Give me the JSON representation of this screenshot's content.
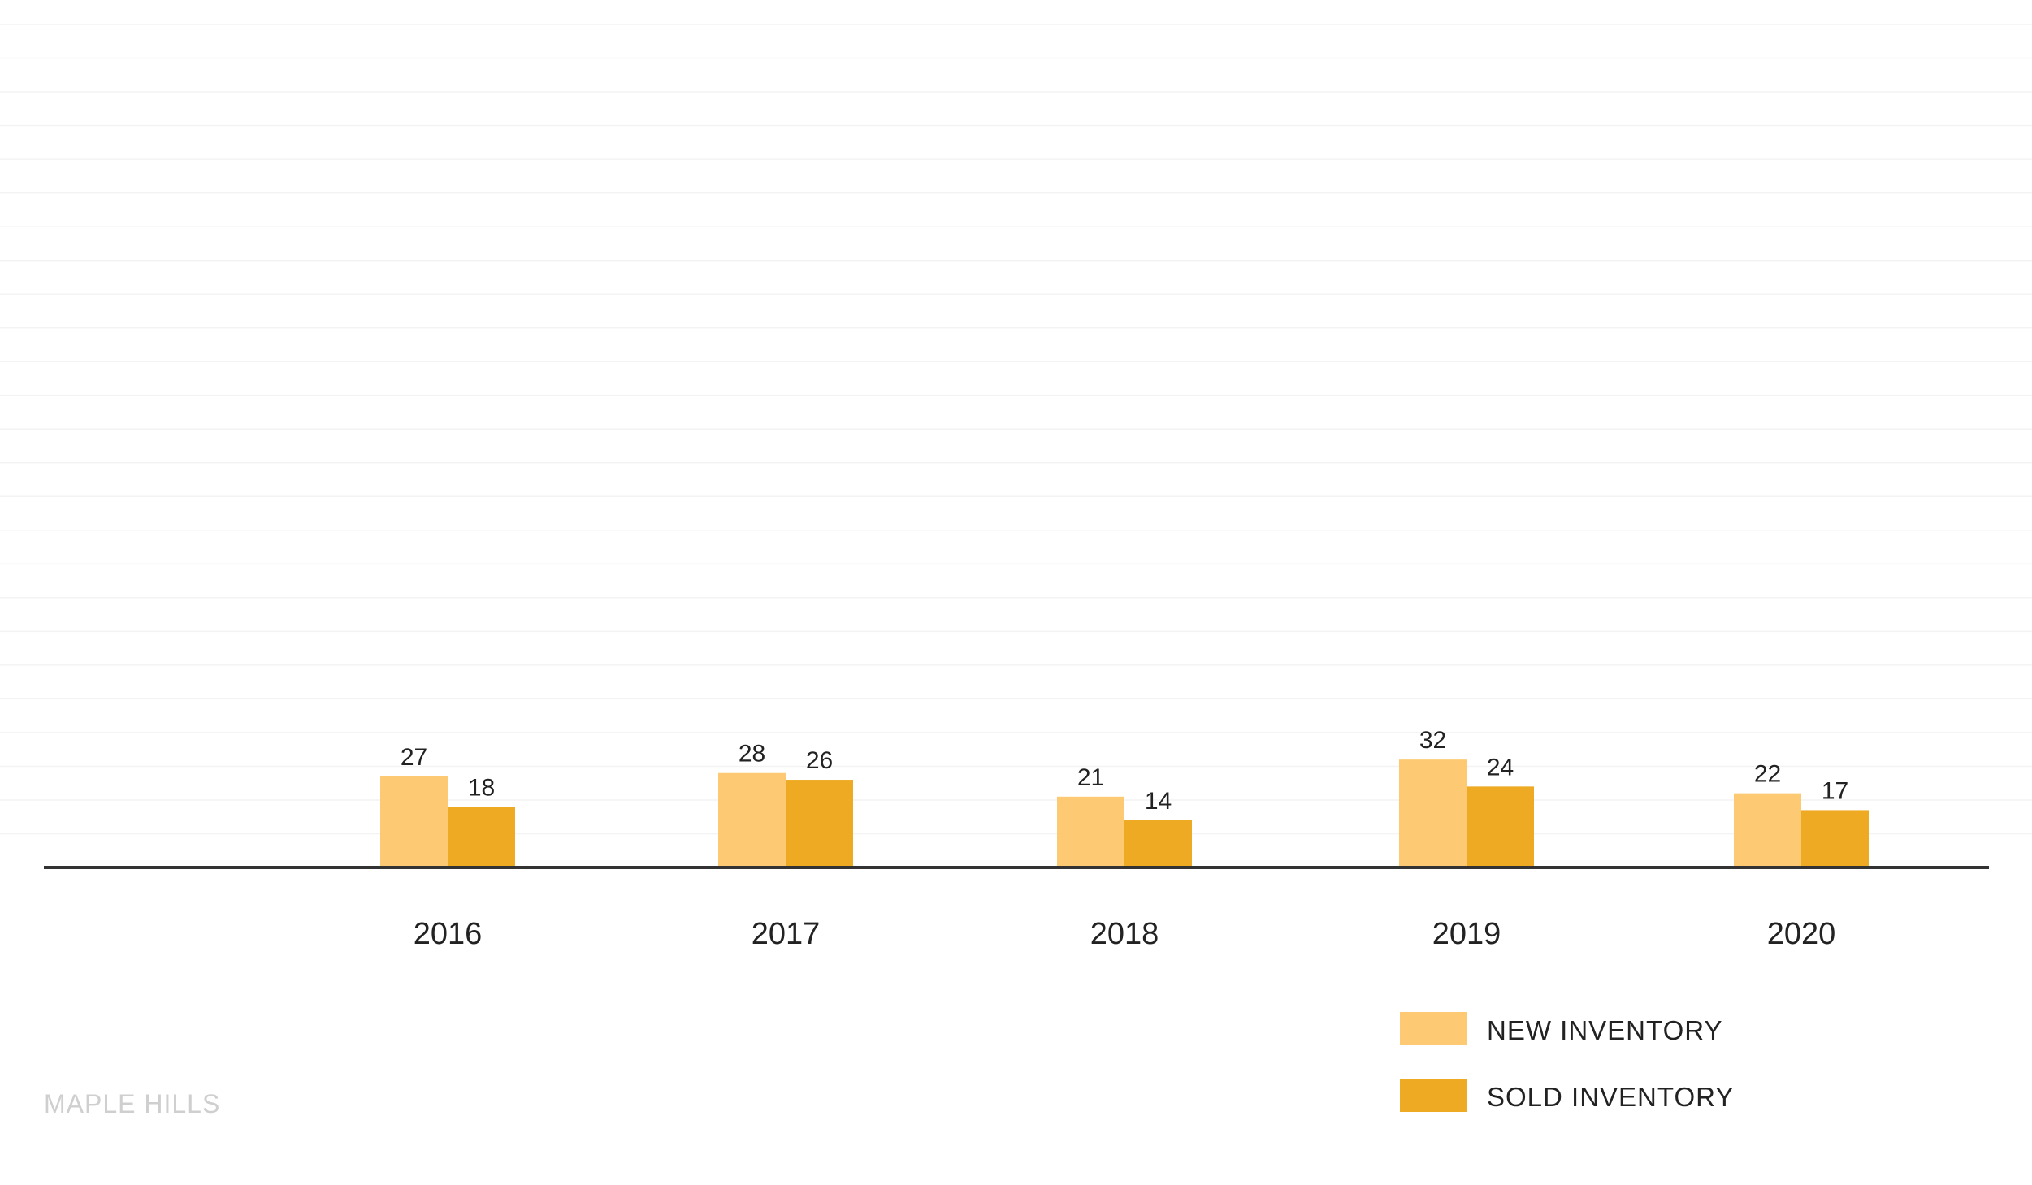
{
  "chart_data": {
    "type": "bar",
    "categories": [
      "2016",
      "2017",
      "2018",
      "2019",
      "2020"
    ],
    "series": [
      {
        "name": "NEW INVENTORY",
        "values": [
          27,
          28,
          21,
          32,
          22
        ],
        "color": "#fdca73"
      },
      {
        "name": "SOLD INVENTORY",
        "values": [
          18,
          26,
          14,
          24,
          17
        ],
        "color": "#edaa22"
      }
    ],
    "ylim": [
      0,
      250
    ],
    "grid": true,
    "legend": "bottom-right",
    "axis_color": "#333333",
    "grid_color": "#f3f3f3"
  },
  "footer": {
    "label": "MAPLE HILLS"
  }
}
